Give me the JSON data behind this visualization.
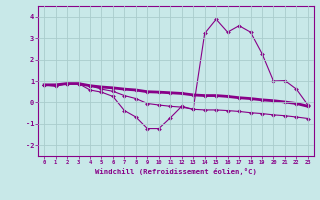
{
  "background_color": "#c8e8e8",
  "grid_color": "#aacccc",
  "line_color": "#880088",
  "xlabel": "Windchill (Refroidissement éolien,°C)",
  "hours": [
    0,
    1,
    2,
    3,
    4,
    5,
    6,
    7,
    8,
    9,
    10,
    11,
    12,
    13,
    14,
    15,
    16,
    17,
    18,
    19,
    20,
    21,
    22,
    23
  ],
  "series1": [
    0.82,
    0.75,
    0.88,
    0.88,
    0.58,
    0.48,
    0.28,
    -0.38,
    -0.68,
    -1.22,
    -1.22,
    -0.72,
    -0.18,
    -0.32,
    3.22,
    3.88,
    3.28,
    3.58,
    3.28,
    2.28,
    1.0,
    1.02,
    0.62,
    -0.12
  ],
  "series2": [
    0.82,
    0.82,
    0.88,
    0.88,
    0.78,
    0.72,
    0.68,
    0.62,
    0.58,
    0.5,
    0.48,
    0.45,
    0.42,
    0.35,
    0.32,
    0.32,
    0.28,
    0.22,
    0.18,
    0.12,
    0.08,
    0.02,
    -0.05,
    -0.18
  ],
  "series3": [
    0.82,
    0.82,
    0.88,
    0.88,
    0.78,
    0.62,
    0.52,
    0.32,
    0.18,
    -0.05,
    -0.12,
    -0.18,
    -0.22,
    -0.32,
    -0.35,
    -0.35,
    -0.38,
    -0.42,
    -0.48,
    -0.52,
    -0.58,
    -0.62,
    -0.68,
    -0.75
  ],
  "ylim": [
    -2.5,
    4.5
  ],
  "yticks": [
    -2,
    -1,
    0,
    1,
    2,
    3,
    4
  ],
  "xlim": [
    -0.5,
    23.5
  ]
}
